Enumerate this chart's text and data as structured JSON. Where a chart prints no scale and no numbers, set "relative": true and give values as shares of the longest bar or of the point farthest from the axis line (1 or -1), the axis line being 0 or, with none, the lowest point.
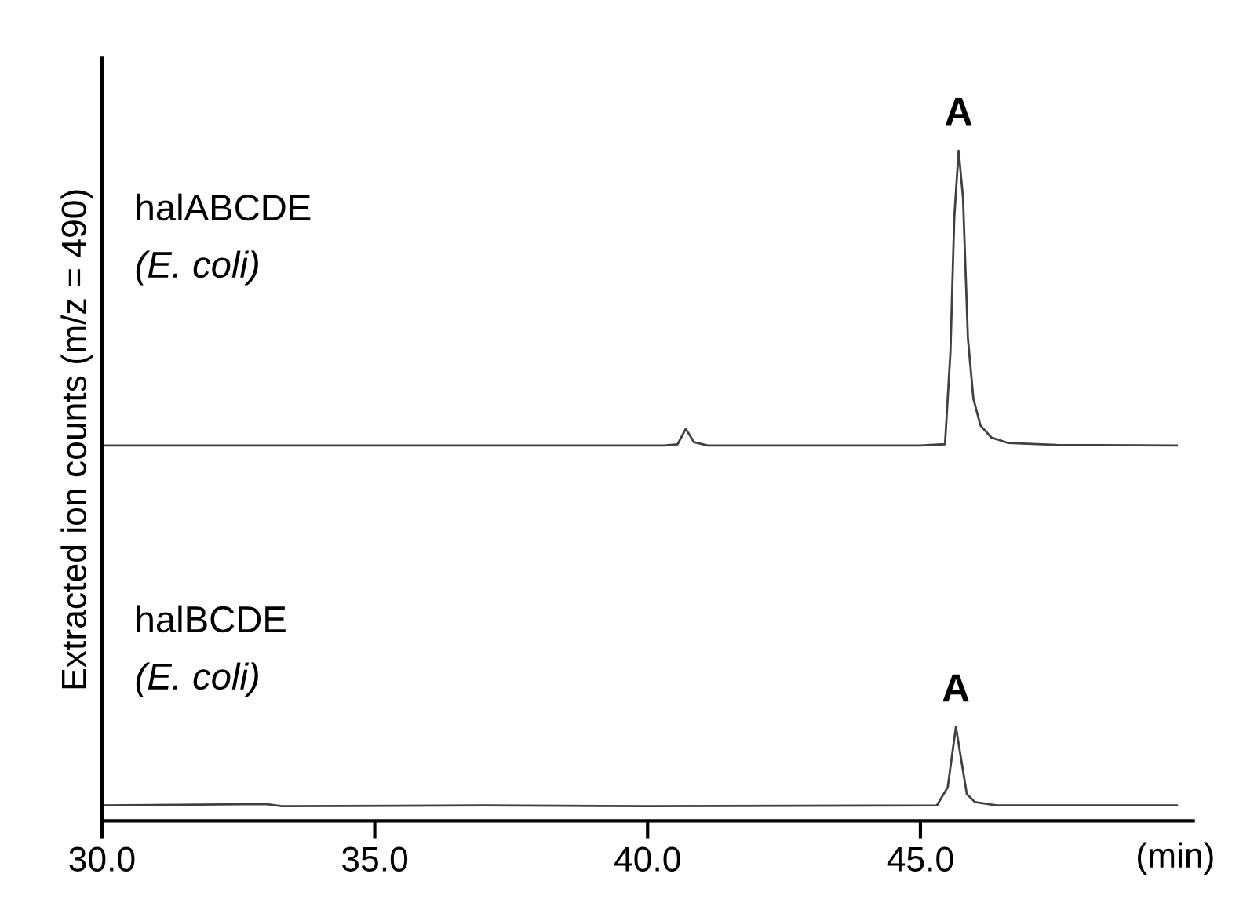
{
  "chart_data": {
    "type": "line",
    "relative": true,
    "ylabel": "Extracted ion counts (m/z = 490)",
    "xlabel": "(min)",
    "xlim": [
      30,
      50
    ],
    "xticks": [
      {
        "value": 30,
        "label": "30.0"
      },
      {
        "value": 35,
        "label": "35.0"
      },
      {
        "value": 40,
        "label": "40.0"
      },
      {
        "value": 45,
        "label": "45.0"
      }
    ],
    "grid": false,
    "legend": false,
    "marker": "none",
    "line_style": "solid",
    "series": [
      {
        "color": "#404040",
        "x": [
          30,
          34,
          38,
          40.3,
          40.55,
          40.7,
          40.85,
          41.1,
          45.0,
          45.45,
          45.55,
          45.62,
          45.7,
          45.78,
          45.87,
          45.97,
          46.1,
          46.3,
          46.6,
          47.5,
          49.7
        ],
        "values": [
          0.56,
          0.56,
          0.56,
          0.56,
          0.562,
          0.585,
          0.565,
          0.56,
          0.56,
          0.562,
          0.7,
          0.9,
          1.0,
          0.93,
          0.72,
          0.63,
          0.59,
          0.572,
          0.564,
          0.561,
          0.56
        ]
      },
      {
        "color": "#404040",
        "x": [
          30,
          33,
          33.3,
          37,
          40,
          45.3,
          45.5,
          45.65,
          45.75,
          45.85,
          46.0,
          46.4,
          49.7
        ],
        "values": [
          0.023,
          0.025,
          0.022,
          0.023,
          0.022,
          0.023,
          0.05,
          0.14,
          0.09,
          0.04,
          0.028,
          0.023,
          0.023
        ]
      }
    ],
    "annotations": [
      {
        "text": "A",
        "x": 45.7,
        "y": 1.0
      },
      {
        "text": "A",
        "x": 45.65,
        "y": 0.14
      },
      "halABCDE\n(E. coli)",
      "halBCDE\n(E. coli)"
    ]
  }
}
